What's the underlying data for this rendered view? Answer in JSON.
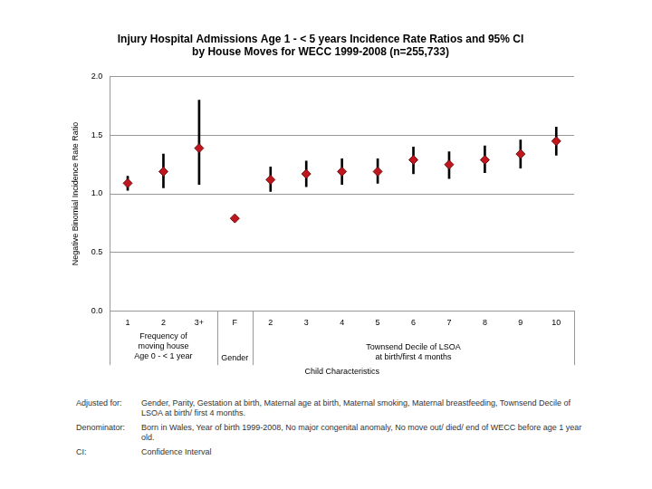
{
  "chart_data": {
    "type": "scatter",
    "title": [
      "Injury Hospital Admissions Age 1 - < 5 years Incidence Rate Ratios and 95% CI",
      "by House Moves for WECC 1999-2008 (n=255,733)"
    ],
    "y_label": "Negative Binomial Incidence Rate Ratio",
    "categories": [
      "1",
      "2",
      "3+",
      "F",
      "2",
      "3",
      "4",
      "5",
      "6",
      "7",
      "8",
      "9",
      "10"
    ],
    "values": [
      1.09,
      1.19,
      1.39,
      0.79,
      1.12,
      1.17,
      1.19,
      1.19,
      1.29,
      1.25,
      1.29,
      1.34,
      1.45
    ],
    "ci_lower": [
      1.03,
      1.05,
      1.08,
      0.78,
      1.02,
      1.06,
      1.08,
      1.09,
      1.17,
      1.13,
      1.18,
      1.22,
      1.33
    ],
    "ci_upper": [
      1.15,
      1.34,
      1.8,
      0.81,
      1.23,
      1.28,
      1.3,
      1.3,
      1.4,
      1.36,
      1.41,
      1.46,
      1.57
    ],
    "color": "#c0161e",
    "marker": "diamond",
    "grid": true,
    "ylim": [
      0,
      2
    ],
    "yticks": [
      {
        "value": 0,
        "label": "0.0"
      },
      {
        "value": 0.5,
        "label": "0.5"
      },
      {
        "value": 1,
        "label": "1.0"
      },
      {
        "value": 1.5,
        "label": "1.5"
      },
      {
        "value": 2,
        "label": "2.0"
      }
    ],
    "category_groups": [
      {
        "lines": [
          "Frequency of",
          "moving house",
          "Age 0 - < 1 year"
        ],
        "from": 0,
        "to": 2
      },
      {
        "lines": [
          "Gender"
        ],
        "from": 3,
        "to": 3
      },
      {
        "lines": [
          "Townsend Decile of LSOA",
          "at birth/first 4 months"
        ],
        "from": 4,
        "to": 12
      }
    ],
    "outer_group": {
      "lines": [
        "Child Characteristics"
      ],
      "from": 0,
      "to": 12
    },
    "footnotes": [
      {
        "label": "Adjusted for:",
        "text": "Gender, Parity, Gestation at birth, Maternal age at birth, Maternal smoking, Maternal  breastfeeding, Townsend Decile of LSOA at birth/ first 4 months."
      },
      {
        "label": "Denominator:",
        "text": "Born in Wales, Year of birth 1999-2008, No major congenital anomaly, No move out/ died/ end of WECC before age 1 year old."
      },
      {
        "label": "CI:",
        "text": "Confidence Interval"
      }
    ]
  }
}
